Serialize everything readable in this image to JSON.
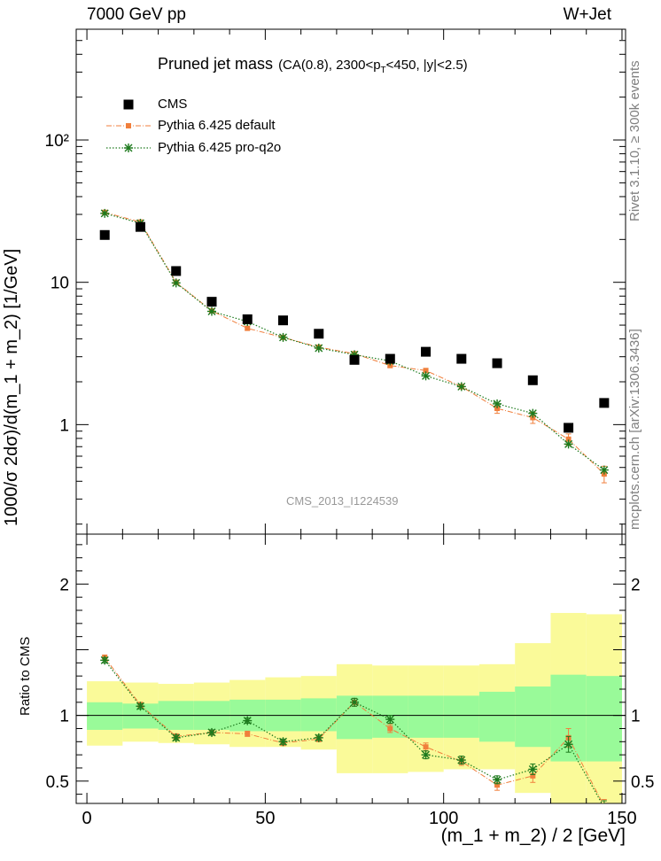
{
  "header": {
    "energy_label": "7000 GeV pp",
    "process_label": "W+Jet"
  },
  "side": {
    "rivet_label": "Rivet 3.1.10, ≥ 300k events",
    "mcplots_label": "mcplots.cern.ch [arXiv:1306.3436]"
  },
  "plot_title": {
    "main": "Pruned jet mass",
    "cut_prefix": "(CA(0.8), 2300<p",
    "cut_sub": "T",
    "cut_suffix": "<450, |y|<2.5)"
  },
  "analysis_label": "CMS_2013_I1224539",
  "colors": {
    "cms": "#000000",
    "pythia_default": "#f07f3c",
    "pythia_proq2o": "#1d7a1d",
    "band_inner": "#99fa99",
    "band_outer": "#fafa99"
  },
  "chart_data": [
    {
      "type": "scatter",
      "title": "Pruned jet mass (CA(0.8), 2300<pT<450, |y|<2.5)",
      "xlabel": "(m_1 + m_2) / 2 [GeV]",
      "ylabel": "1000/σ 2dσ)/d(m_1 + m_2) [1/GeV]",
      "yscale": "log",
      "xlim": [
        -3,
        151
      ],
      "ylim": [
        0.17,
        600
      ],
      "yticks": [
        {
          "value": 1,
          "label": "1"
        },
        {
          "value": 10,
          "label": "10"
        },
        {
          "value": 100,
          "label": "10²"
        }
      ],
      "legend": [
        "CMS",
        "Pythia 6.425 default",
        "Pythia 6.425 pro-q2o"
      ],
      "legend_position": "top-left",
      "x": [
        5,
        15,
        25,
        35,
        45,
        55,
        65,
        75,
        85,
        95,
        105,
        115,
        125,
        135,
        145
      ],
      "series": [
        {
          "name": "CMS",
          "marker": "square",
          "values": [
            21.5,
            24.5,
            12.0,
            7.3,
            5.5,
            5.4,
            4.35,
            2.85,
            2.9,
            3.25,
            2.9,
            2.7,
            2.05,
            0.95,
            1.42
          ]
        },
        {
          "name": "Pythia 6.425 default",
          "marker": "small-square",
          "line": "dash-dot",
          "values": [
            31.0,
            26.5,
            10.0,
            6.3,
            4.75,
            4.1,
            3.5,
            3.15,
            2.6,
            2.4,
            1.85,
            1.3,
            1.12,
            0.79,
            0.45
          ],
          "errors": [
            0.6,
            0.5,
            0.2,
            0.12,
            0.12,
            0.1,
            0.09,
            0.08,
            0.08,
            0.08,
            0.07,
            0.1,
            0.1,
            0.07,
            0.06
          ]
        },
        {
          "name": "Pythia 6.425 pro-q2o",
          "marker": "star",
          "line": "dotted",
          "values": [
            30.5,
            26.0,
            9.9,
            6.25,
            5.3,
            4.1,
            3.45,
            3.1,
            2.8,
            2.2,
            1.85,
            1.4,
            1.2,
            0.73,
            0.48
          ],
          "errors": [
            0.6,
            0.5,
            0.2,
            0.12,
            0.12,
            0.1,
            0.09,
            0.08,
            0.08,
            0.08,
            0.07,
            0.08,
            0.08,
            0.06,
            0.05
          ]
        }
      ]
    },
    {
      "type": "scatter",
      "title": "",
      "xlabel": "(m_1 + m_2) / 2 [GeV]",
      "ylabel": "Ratio to CMS",
      "xlim": [
        -3,
        151
      ],
      "ylim": [
        0.33,
        2.38
      ],
      "xticks": [
        0,
        50,
        100,
        150
      ],
      "yticks": [
        {
          "value": 0.5,
          "label": "0.5"
        },
        {
          "value": 1,
          "label": "1"
        },
        {
          "value": 2,
          "label": "2"
        }
      ],
      "reference_line": 1,
      "bins": [
        [
          0,
          10
        ],
        [
          10,
          20
        ],
        [
          20,
          30
        ],
        [
          30,
          40
        ],
        [
          40,
          50
        ],
        [
          50,
          60
        ],
        [
          60,
          70
        ],
        [
          70,
          80
        ],
        [
          80,
          90
        ],
        [
          90,
          100
        ],
        [
          100,
          110
        ],
        [
          110,
          120
        ],
        [
          120,
          130
        ],
        [
          130,
          140
        ],
        [
          140,
          150
        ]
      ],
      "band_inner": {
        "lo": [
          0.89,
          0.9,
          0.89,
          0.89,
          0.88,
          0.88,
          0.88,
          0.82,
          0.83,
          0.83,
          0.83,
          0.8,
          0.76,
          0.65,
          0.65
        ],
        "hi": [
          1.1,
          1.09,
          1.11,
          1.11,
          1.12,
          1.12,
          1.13,
          1.15,
          1.15,
          1.15,
          1.15,
          1.18,
          1.22,
          1.31,
          1.3
        ]
      },
      "band_outer": {
        "lo": [
          0.77,
          0.8,
          0.79,
          0.78,
          0.76,
          0.76,
          0.74,
          0.56,
          0.56,
          0.57,
          0.59,
          0.59,
          0.41,
          0.33,
          0.33
        ],
        "hi": [
          1.26,
          1.25,
          1.24,
          1.25,
          1.27,
          1.29,
          1.3,
          1.39,
          1.38,
          1.38,
          1.38,
          1.39,
          1.55,
          1.78,
          1.77
        ]
      },
      "series": [
        {
          "name": "Pythia 6.425 default",
          "values": [
            1.44,
            1.08,
            0.84,
            0.87,
            0.86,
            0.79,
            0.82,
            1.1,
            0.9,
            0.76,
            0.65,
            0.47,
            0.54,
            0.83,
            0.31
          ],
          "errors": [
            0.02,
            0.02,
            0.02,
            0.02,
            0.02,
            0.02,
            0.02,
            0.03,
            0.03,
            0.03,
            0.03,
            0.04,
            0.05,
            0.07,
            0.05
          ]
        },
        {
          "name": "Pythia 6.425 pro-q2o",
          "values": [
            1.42,
            1.07,
            0.83,
            0.87,
            0.96,
            0.8,
            0.83,
            1.1,
            0.97,
            0.7,
            0.66,
            0.51,
            0.59,
            0.78,
            0.3
          ],
          "errors": [
            0.02,
            0.02,
            0.02,
            0.02,
            0.02,
            0.02,
            0.02,
            0.03,
            0.03,
            0.03,
            0.03,
            0.03,
            0.04,
            0.06,
            0.05
          ]
        }
      ]
    }
  ]
}
